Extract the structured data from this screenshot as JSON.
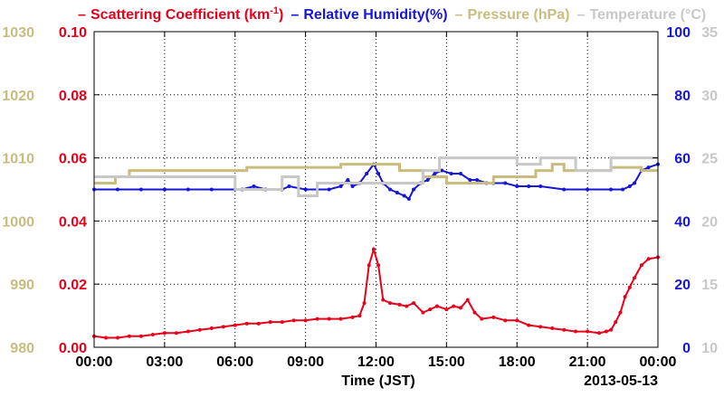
{
  "chart_data": {
    "type": "line",
    "title": "",
    "legend": {
      "placement": "top",
      "items": [
        {
          "label": "Scattering Coefficient (km",
          "sup": "-1",
          "tail": ")",
          "color": "#e8001a"
        },
        {
          "label": "Relative Humidity(%)",
          "color": "#1616d6"
        },
        {
          "label": "Pressure (hPa)",
          "color": "#c8bc7e"
        },
        {
          "label": "Temperature (°C)",
          "color": "#c8c8c8"
        }
      ]
    },
    "xlabel": "Time (JST)",
    "date_label": "2013-05-13",
    "x_range_hours": [
      0,
      24
    ],
    "x_ticks": [
      {
        "v": 0,
        "label": "00:00"
      },
      {
        "v": 3,
        "label": "03:00"
      },
      {
        "v": 6,
        "label": "06:00"
      },
      {
        "v": 9,
        "label": "09:00"
      },
      {
        "v": 12,
        "label": "12:00"
      },
      {
        "v": 15,
        "label": "15:00"
      },
      {
        "v": 18,
        "label": "18:00"
      },
      {
        "v": 21,
        "label": "21:00"
      },
      {
        "v": 24,
        "label": "00:00"
      }
    ],
    "grid": true,
    "axes": {
      "scattering": {
        "side": "left",
        "range": [
          0,
          0.1
        ],
        "color": "#e8001a",
        "ticks": [
          "0.00",
          "0.02",
          "0.04",
          "0.06",
          "0.08",
          "0.10"
        ]
      },
      "pressure": {
        "side": "left-outer",
        "range": [
          980,
          1030
        ],
        "color": "#c8bc7e",
        "ticks": [
          "980",
          "990",
          "1000",
          "1010",
          "1020",
          "1030"
        ]
      },
      "humidity": {
        "side": "right",
        "range": [
          0,
          100
        ],
        "color": "#1616d6",
        "ticks": [
          "0",
          "20",
          "40",
          "60",
          "80",
          "100"
        ]
      },
      "temperature": {
        "side": "right-outer",
        "range": [
          10,
          35
        ],
        "color": "#c8c8c8",
        "ticks": [
          "10",
          "15",
          "20",
          "25",
          "30",
          "35"
        ]
      }
    },
    "series": [
      {
        "name": "Scattering Coefficient",
        "axis": "scattering",
        "color": "#e8001a",
        "markers": true,
        "x": [
          0,
          0.5,
          1,
          1.5,
          2,
          2.5,
          3,
          3.5,
          4,
          4.5,
          5,
          5.5,
          6,
          6.5,
          7,
          7.5,
          8,
          8.5,
          9,
          9.5,
          10,
          10.5,
          11,
          11.3,
          11.5,
          11.7,
          11.9,
          12.1,
          12.3,
          12.6,
          13,
          13.3,
          13.6,
          14,
          14.3,
          14.6,
          15,
          15.3,
          15.6,
          15.9,
          16.2,
          16.5,
          17,
          17.5,
          18,
          18.5,
          19,
          19.5,
          20,
          20.5,
          21,
          21.5,
          21.8,
          22,
          22.2,
          22.4,
          22.6,
          22.8,
          23,
          23.3,
          23.6,
          24
        ],
        "values": [
          0.0035,
          0.003,
          0.003,
          0.0035,
          0.0035,
          0.004,
          0.0045,
          0.0045,
          0.005,
          0.0055,
          0.006,
          0.0065,
          0.007,
          0.0075,
          0.0075,
          0.008,
          0.008,
          0.0085,
          0.0085,
          0.009,
          0.009,
          0.009,
          0.0095,
          0.01,
          0.014,
          0.026,
          0.031,
          0.026,
          0.015,
          0.014,
          0.0135,
          0.013,
          0.014,
          0.011,
          0.012,
          0.013,
          0.012,
          0.013,
          0.0125,
          0.015,
          0.011,
          0.009,
          0.0095,
          0.0085,
          0.0085,
          0.007,
          0.0065,
          0.006,
          0.0055,
          0.005,
          0.005,
          0.0045,
          0.005,
          0.0055,
          0.008,
          0.011,
          0.016,
          0.019,
          0.022,
          0.026,
          0.028,
          0.0285
        ]
      },
      {
        "name": "Relative Humidity",
        "axis": "humidity",
        "color": "#1616d6",
        "markers": true,
        "x": [
          0,
          1,
          2,
          3,
          4,
          5,
          6,
          6.3,
          6.8,
          7.3,
          8,
          8.3,
          9,
          9.5,
          10,
          10.5,
          10.8,
          11,
          11.3,
          11.6,
          11.9,
          12.1,
          12.3,
          12.6,
          12.9,
          13.2,
          13.4,
          13.6,
          13.9,
          14.2,
          14.5,
          14.8,
          15.2,
          15.6,
          16,
          16.3,
          16.7,
          17,
          17.5,
          18,
          18.5,
          19,
          20,
          21,
          22,
          22.5,
          22.8,
          23,
          23.3,
          23.6,
          24
        ],
        "values": [
          50,
          50,
          50,
          50,
          50,
          50,
          50,
          50,
          51,
          50,
          50,
          51,
          50,
          50,
          50,
          51,
          53,
          51,
          52,
          55,
          58,
          55,
          52,
          50,
          49,
          48,
          47,
          50,
          52,
          53,
          55,
          56,
          55,
          55,
          53,
          53,
          52,
          52,
          52,
          51,
          51,
          51,
          50,
          50,
          50,
          50,
          51,
          52,
          56,
          57,
          58
        ]
      },
      {
        "name": "Pressure",
        "axis": "pressure",
        "color": "#c8bc7e",
        "step": true,
        "x": [
          0,
          0.9,
          1.5,
          2,
          6,
          6.5,
          9.5,
          10.5,
          12,
          13,
          14,
          15,
          16,
          17,
          18,
          18.8,
          19.5,
          20,
          21,
          22,
          23.3,
          24
        ],
        "values": [
          1006,
          1007,
          1008,
          1008,
          1008,
          1008.5,
          1008.5,
          1009,
          1009,
          1008,
          1007,
          1006,
          1006,
          1007,
          1007,
          1008,
          1009,
          1008,
          1008,
          1008.5,
          1008,
          1008
        ]
      },
      {
        "name": "Temperature",
        "axis": "temperature",
        "color": "#c8c8c8",
        "step": true,
        "x": [
          0,
          2,
          4,
          5.5,
          6,
          6.5,
          7,
          8,
          8.7,
          9.5,
          11,
          12,
          13,
          14,
          14.7,
          15,
          16,
          17,
          18,
          19,
          19.8,
          20.5,
          21.3,
          22,
          23,
          24
        ],
        "values": [
          23.5,
          23.5,
          23.5,
          23.5,
          22.5,
          22.5,
          22.5,
          23.5,
          22,
          23,
          23,
          23,
          23,
          24,
          25,
          25,
          25,
          25,
          24.5,
          25,
          25,
          24,
          24,
          25,
          25,
          25
        ]
      }
    ]
  }
}
